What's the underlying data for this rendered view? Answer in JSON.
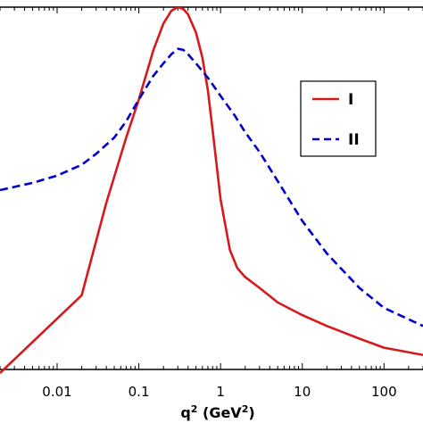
{
  "chart_data": {
    "type": "line",
    "x_scale": "log",
    "xlim": [
      0.002,
      300
    ],
    "ylim": [
      0,
      1
    ],
    "grid": false,
    "legend_position": "right",
    "x_ticks": [
      {
        "value": 0.01,
        "label": "0.01"
      },
      {
        "value": 0.1,
        "label": "0.1"
      },
      {
        "value": 1,
        "label": "1"
      },
      {
        "value": 10,
        "label": "10"
      },
      {
        "value": 100,
        "label": "100"
      }
    ],
    "xlabel": {
      "main": "q",
      "sup": "2",
      "unit_open": " (GeV",
      "unit_sup": "2",
      "unit_close": ")"
    },
    "series": [
      {
        "name": "I",
        "color": "#d7191c",
        "style": "solid",
        "x": [
          0.002,
          0.02,
          0.04,
          0.07,
          0.1,
          0.15,
          0.2,
          0.25,
          0.3,
          0.35,
          0.4,
          0.5,
          0.6,
          0.7,
          0.8,
          1.0,
          1.3,
          1.6,
          2.0,
          3.0,
          5.0,
          10,
          20,
          50,
          100,
          300
        ],
        "y": [
          -0.01,
          0.205,
          0.46,
          0.64,
          0.745,
          0.88,
          0.955,
          0.99,
          1.0,
          0.995,
          0.98,
          0.93,
          0.86,
          0.77,
          0.66,
          0.47,
          0.33,
          0.28,
          0.255,
          0.225,
          0.185,
          0.15,
          0.12,
          0.085,
          0.06,
          0.04
        ]
      },
      {
        "name": "II",
        "color": "#0000cc",
        "style": "dashed",
        "x": [
          0.002,
          0.005,
          0.01,
          0.02,
          0.03,
          0.05,
          0.07,
          0.1,
          0.15,
          0.2,
          0.25,
          0.3,
          0.35,
          0.4,
          0.5,
          0.7,
          1.0,
          1.5,
          2.0,
          3.0,
          5.0,
          10,
          20,
          50,
          100,
          300
        ],
        "y": [
          0.495,
          0.515,
          0.535,
          0.565,
          0.595,
          0.64,
          0.685,
          0.745,
          0.81,
          0.845,
          0.87,
          0.885,
          0.882,
          0.87,
          0.845,
          0.805,
          0.755,
          0.7,
          0.655,
          0.6,
          0.52,
          0.41,
          0.32,
          0.225,
          0.17,
          0.12
        ]
      }
    ]
  }
}
